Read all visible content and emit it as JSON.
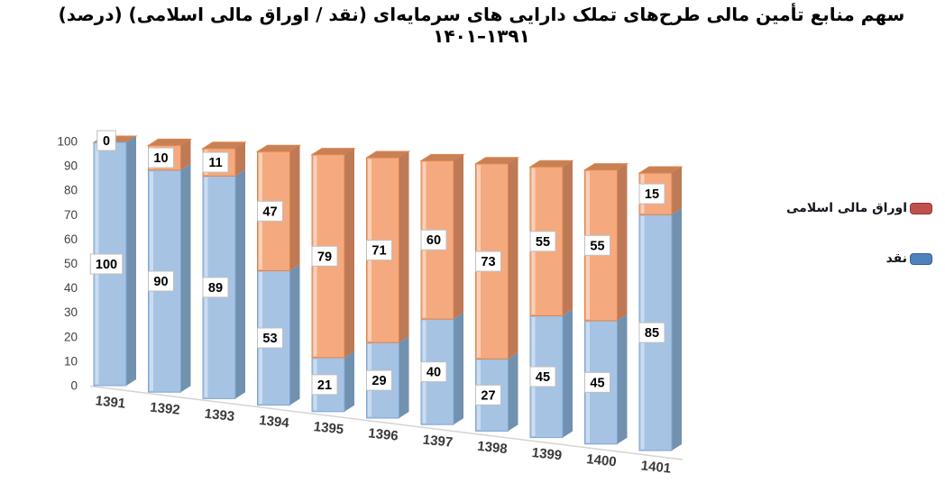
{
  "legend": {
    "position": "right",
    "items": [
      {
        "id": "islamic-securities",
        "label": "اوراق مالی اسلامی",
        "swatch_color": "#C0504D",
        "swatch_border": "#8C3836"
      },
      {
        "id": "cash",
        "label": "نقد",
        "swatch_color": "#4F81BD",
        "swatch_border": "#36618E"
      }
    ]
  },
  "chart_data": {
    "type": "bar",
    "variant": "3d-stacked-column",
    "unit": "percent",
    "title": "سهم منابع تأمین مالی طرح‌های تملک دارایی های سرمایه‌ای (نقد / اوراق مالی اسلامی) (درصد) ۱۳۹۱–۱۴۰۱",
    "categories": [
      "1391",
      "1392",
      "1393",
      "1394",
      "1395",
      "1396",
      "1397",
      "1398",
      "1399",
      "1400",
      "1401"
    ],
    "series": [
      {
        "name": "نقد",
        "color": "#A6C3E4",
        "side_color": "#7191AF",
        "edge_color": "#7EA6D4",
        "values": [
          100,
          90,
          89,
          53,
          21,
          29,
          40,
          27,
          45,
          45,
          85
        ]
      },
      {
        "name": "اوراق مالی اسلامی",
        "color": "#F5A97F",
        "side_color": "#BE7A56",
        "top_color": "#C68157",
        "edge_color": "#E08448",
        "values": [
          0,
          10,
          11,
          47,
          79,
          71,
          60,
          73,
          55,
          55,
          15
        ]
      }
    ],
    "xlabel": "",
    "ylabel": "",
    "ylim": [
      0,
      100
    ],
    "yticks": [
      0,
      10,
      20,
      30,
      40,
      50,
      60,
      70,
      80,
      90,
      100
    ],
    "gridlines": false,
    "data_labels": true,
    "legend_position": "right"
  },
  "colors": {
    "background": "#FFFFFF",
    "floor_line": "#D4D4D4",
    "axis_text": "#3F3F3F",
    "label_box_fill": "#FFFFFF",
    "label_box_border": "#BFBFBF",
    "label_text": "#000000"
  }
}
